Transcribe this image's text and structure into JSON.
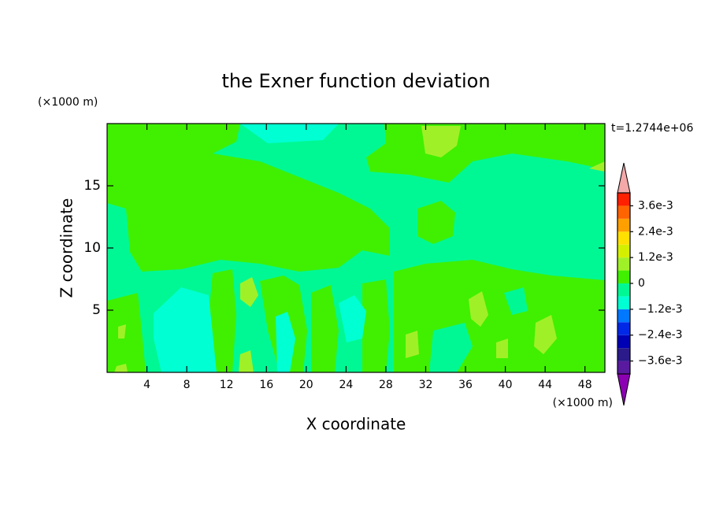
{
  "chart_data": {
    "type": "contour",
    "title": "the Exner function deviation",
    "annotation": "t=1.2744e+06",
    "x_label": "X coordinate",
    "y_label": "Z coordinate",
    "x_unit": "(×1000 m)",
    "y_unit": "(×1000 m)",
    "xlim": [
      0,
      50
    ],
    "xticks": [
      4,
      8,
      12,
      16,
      20,
      24,
      28,
      32,
      36,
      40,
      44,
      48
    ],
    "ylim": [
      0,
      20
    ],
    "yticks": [
      5,
      10,
      15
    ],
    "colorbar": {
      "levels": [
        -0.0042,
        -0.0036,
        -0.003,
        -0.0024,
        -0.0018,
        -0.0012,
        -0.0006,
        0,
        0.0006,
        0.0012,
        0.0018,
        0.0024,
        0.003,
        0.0036,
        0.0042
      ],
      "colors": [
        "#5a1aa0",
        "#2a1a8a",
        "#0000b4",
        "#0028e6",
        "#0078ff",
        "#00ffd2",
        "#00f894",
        "#40f000",
        "#a0f028",
        "#d4f000",
        "#ffe000",
        "#ffa000",
        "#ff6400",
        "#ff2000"
      ],
      "under_color": "#8c00b4",
      "over_color": "#f4a8a8",
      "ticks": [
        {
          "value": -0.0036,
          "label": "−3.6e-3"
        },
        {
          "value": -0.0024,
          "label": "−2.4e-3"
        },
        {
          "value": -0.0012,
          "label": "−1.2e-3"
        },
        0,
        {
          "value": 0.0012,
          "label": "1.2e-3"
        },
        {
          "value": 0.0024,
          "label": "2.4e-3"
        },
        {
          "value": 0.0036,
          "label": "3.6e-3"
        }
      ]
    }
  }
}
